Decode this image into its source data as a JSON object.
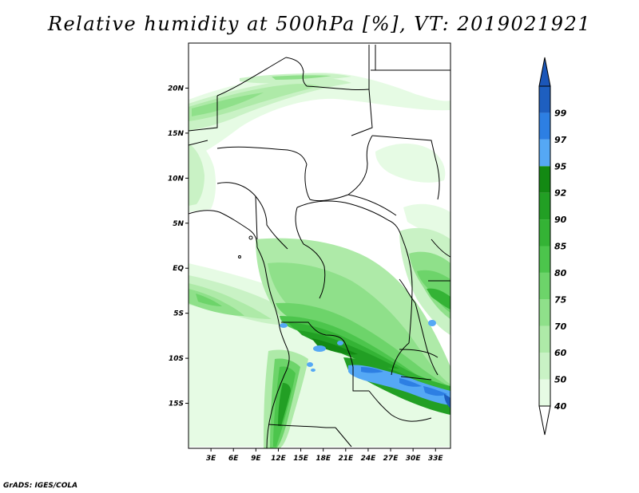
{
  "title": "Relative humidity at 500hPa [%], VT: 2019021921",
  "credit": "GrADS: IGES/COLA",
  "map": {
    "variable": "Relative humidity at 500hPa",
    "units": "%",
    "lon_range": [
      0,
      35
    ],
    "lat_range": [
      -20,
      25
    ],
    "lat_ticks": [
      {
        "value": 20,
        "label": "20N"
      },
      {
        "value": 15,
        "label": "15N"
      },
      {
        "value": 10,
        "label": "10N"
      },
      {
        "value": 5,
        "label": "5N"
      },
      {
        "value": 0,
        "label": "EQ"
      },
      {
        "value": -5,
        "label": "5S"
      },
      {
        "value": -10,
        "label": "10S"
      },
      {
        "value": -15,
        "label": "15S"
      }
    ],
    "lon_ticks": [
      {
        "value": 3,
        "label": "3E"
      },
      {
        "value": 6,
        "label": "6E"
      },
      {
        "value": 9,
        "label": "9E"
      },
      {
        "value": 12,
        "label": "12E"
      },
      {
        "value": 15,
        "label": "15E"
      },
      {
        "value": 18,
        "label": "18E"
      },
      {
        "value": 21,
        "label": "21E"
      },
      {
        "value": 24,
        "label": "24E"
      },
      {
        "value": 27,
        "label": "27E"
      },
      {
        "value": 30,
        "label": "30E"
      },
      {
        "value": 33,
        "label": "33E"
      }
    ]
  },
  "colorbar": {
    "levels": [
      {
        "label": "40",
        "color": "#e6fbe4"
      },
      {
        "label": "50",
        "color": "#c9f2c5"
      },
      {
        "label": "60",
        "color": "#aeeaa8"
      },
      {
        "label": "70",
        "color": "#8fe08a"
      },
      {
        "label": "75",
        "color": "#6dd46a"
      },
      {
        "label": "80",
        "color": "#4cc54c"
      },
      {
        "label": "85",
        "color": "#34b335"
      },
      {
        "label": "90",
        "color": "#229f24"
      },
      {
        "label": "92",
        "color": "#138913"
      },
      {
        "label": "95",
        "color": "#55a8f5"
      },
      {
        "label": "97",
        "color": "#2d7fe3"
      },
      {
        "label": "99",
        "color": "#1e5fc0"
      }
    ],
    "below_color": "#ffffff",
    "above_color": "#1b56b8"
  }
}
